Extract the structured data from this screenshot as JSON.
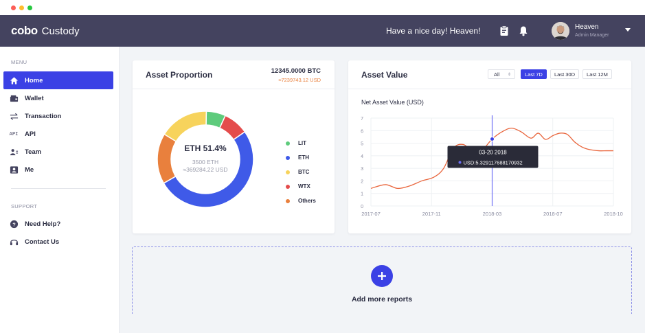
{
  "window": {
    "dots": [
      "#fc5e57",
      "#febc2e",
      "#27c840"
    ]
  },
  "header": {
    "logo_mark": "cobo",
    "logo_text": "Custody",
    "greeting": "Have a nice day! Heaven!",
    "user_name": "Heaven",
    "user_role": "Admin Manager",
    "icons": [
      "clipboard-icon",
      "bell-icon"
    ]
  },
  "sidebar": {
    "menu_label": "MENU",
    "items": [
      {
        "label": "Home",
        "icon": "home-icon",
        "active": true
      },
      {
        "label": "Wallet",
        "icon": "wallet-icon"
      },
      {
        "label": "Transaction",
        "icon": "transfer-icon"
      },
      {
        "label": "API",
        "icon": "api-icon"
      },
      {
        "label": "Team",
        "icon": "team-icon"
      },
      {
        "label": "Me",
        "icon": "user-card-icon"
      }
    ],
    "support_label": "SUPPORT",
    "support_items": [
      {
        "label": "Need Help?",
        "icon": "help-icon"
      },
      {
        "label": "Contact Us",
        "icon": "headset-icon"
      }
    ]
  },
  "asset_proportion": {
    "title": "Asset Proportion",
    "total_btc": "12345.0000 BTC",
    "total_usd": "≈7239743.12 USD",
    "center_title": "ETH  51.4%",
    "center_amount": "3500 ETH",
    "center_usd": "≈369284.22 USD",
    "legend": [
      {
        "label": "LIT",
        "color": "#5ecb7c"
      },
      {
        "label": "ETH",
        "color": "#3f5ae8"
      },
      {
        "label": "BTC",
        "color": "#f7d35c"
      },
      {
        "label": "WTX",
        "color": "#e44c4c"
      },
      {
        "label": "Others",
        "color": "#e9803d"
      }
    ]
  },
  "asset_value": {
    "title": "Asset Value",
    "select_value": "All",
    "ranges": [
      {
        "label": "Last 7D",
        "active": true
      },
      {
        "label": "Last 30D",
        "active": false
      },
      {
        "label": "Last 12M",
        "active": false
      }
    ],
    "tooltip_date": "03-20 2018",
    "tooltip_value": "USD:5.329117688170932"
  },
  "add_reports": {
    "label": "Add more reports",
    "icon": "plus-icon"
  },
  "chart_data": [
    {
      "type": "pie",
      "title": "Asset Proportion",
      "categories": [
        "LIT",
        "WTX",
        "ETH",
        "Others",
        "BTC"
      ],
      "values": [
        6.5,
        8.5,
        51.4,
        17.0,
        16.6
      ],
      "colors": [
        "#5ecb7c",
        "#e44c4c",
        "#3f5ae8",
        "#e9803d",
        "#f7d35c"
      ]
    },
    {
      "type": "line",
      "title": "Net Asset Value (USD)",
      "x_ticks": [
        "2017-07",
        "2017-11",
        "2018-03",
        "2018-07",
        "2018-10"
      ],
      "y_ticks": [
        0,
        1,
        2,
        3,
        4,
        5,
        6,
        7
      ],
      "ylim": [
        0,
        7
      ],
      "xlim": [
        0,
        100
      ],
      "grid": true,
      "x": [
        0,
        6,
        11,
        16,
        21,
        26,
        30,
        34,
        38,
        42,
        46,
        50,
        54,
        58,
        62,
        66,
        69,
        72,
        75,
        78,
        81,
        84,
        87,
        90,
        94,
        97,
        100
      ],
      "values": [
        1.4,
        1.7,
        1.4,
        1.6,
        2.0,
        2.3,
        3.0,
        4.6,
        4.9,
        4.4,
        4.5,
        5.33,
        5.9,
        6.2,
        5.9,
        5.4,
        5.8,
        5.3,
        5.6,
        5.8,
        5.7,
        5.1,
        4.7,
        4.5,
        4.4,
        4.4,
        4.4
      ],
      "tooltip_x": 50,
      "line_color": "#e9663d",
      "marker_color": "#6d6ff5"
    }
  ]
}
